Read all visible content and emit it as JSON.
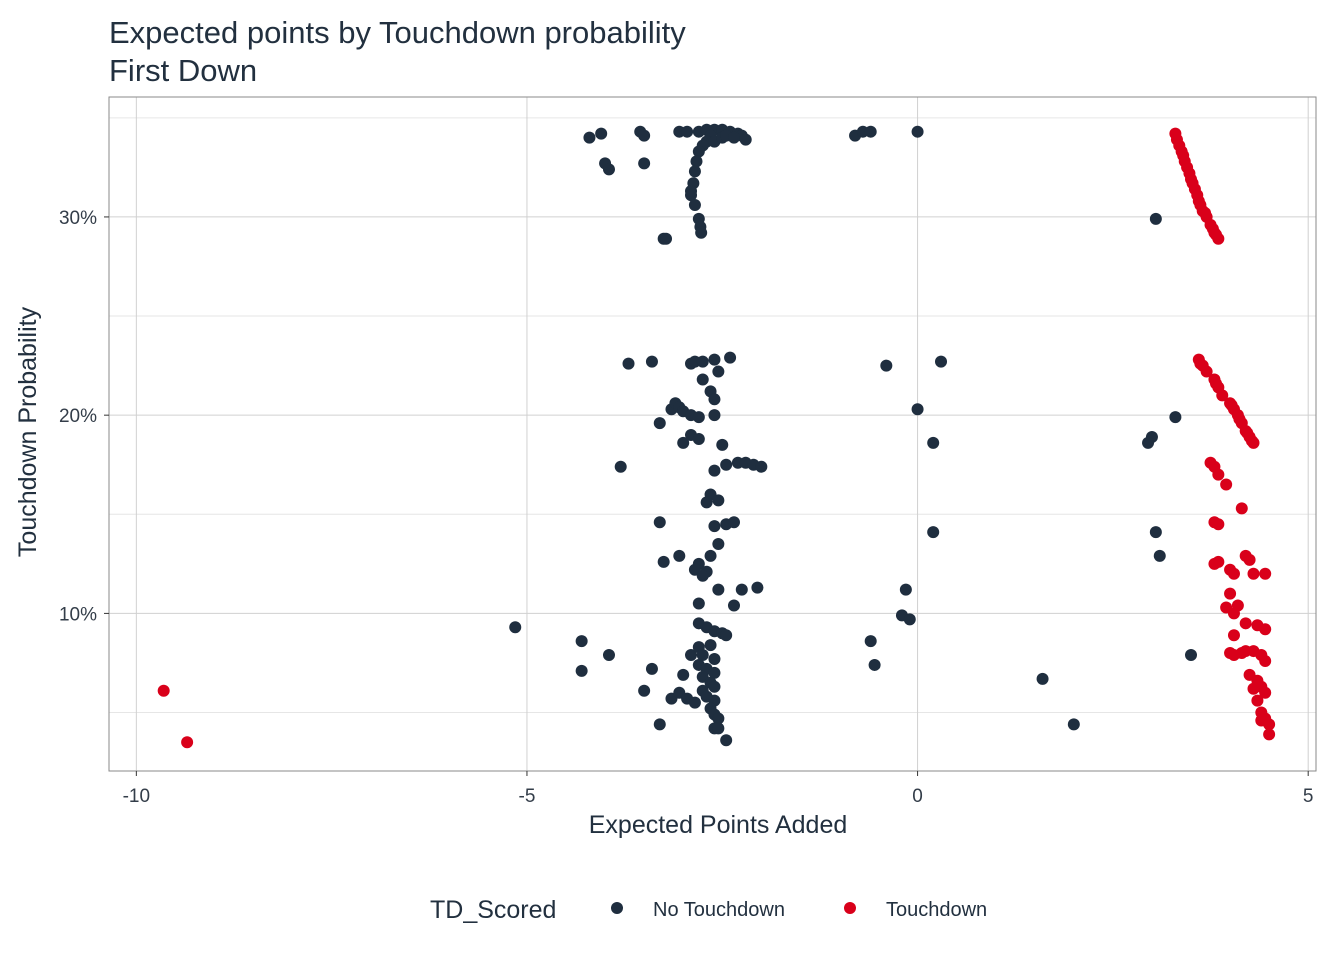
{
  "colors": {
    "no_touchdown": "#1f2e3f",
    "touchdown": "#d9001a",
    "grid_major": "#d0d0d0",
    "grid_minor": "#e6e6e6",
    "panel_border": "#8a8a8a"
  },
  "chart_data": {
    "type": "scatter",
    "title": "Expected points by Touchdown probability",
    "subtitle": "First Down",
    "xlabel": "Expected Points Added",
    "ylabel": "Touchdown Probability",
    "xlim": [
      -10.35,
      5.1
    ],
    "ylim": [
      0.0205,
      0.3605
    ],
    "x_ticks": [
      -10,
      -5,
      0,
      5
    ],
    "x_tick_labels": [
      "-10",
      "-5",
      "0",
      "5"
    ],
    "y_ticks": [
      0.1,
      0.2,
      0.3
    ],
    "y_tick_labels": [
      "10%",
      "20%",
      "30%"
    ],
    "y_minor_ticks": [
      0.05,
      0.15,
      0.25,
      0.35
    ],
    "grid": true,
    "legend": {
      "title": "TD_Scored",
      "position": "bottom",
      "entries": [
        "No Touchdown",
        "Touchdown"
      ]
    },
    "series": [
      {
        "name": "No Touchdown",
        "points": [
          [
            -4.2,
            0.34
          ],
          [
            -4.05,
            0.342
          ],
          [
            -3.55,
            0.343
          ],
          [
            -3.5,
            0.341
          ],
          [
            -4.0,
            0.327
          ],
          [
            -3.95,
            0.324
          ],
          [
            -3.5,
            0.327
          ],
          [
            -3.25,
            0.289
          ],
          [
            -3.22,
            0.289
          ],
          [
            -3.05,
            0.343
          ],
          [
            -2.95,
            0.343
          ],
          [
            -2.8,
            0.343
          ],
          [
            -2.7,
            0.344
          ],
          [
            -2.6,
            0.344
          ],
          [
            -2.5,
            0.344
          ],
          [
            -2.4,
            0.343
          ],
          [
            -2.3,
            0.342
          ],
          [
            -2.25,
            0.341
          ],
          [
            -2.2,
            0.339
          ],
          [
            -2.65,
            0.341
          ],
          [
            -2.7,
            0.338
          ],
          [
            -2.75,
            0.336
          ],
          [
            -2.8,
            0.333
          ],
          [
            -2.83,
            0.328
          ],
          [
            -2.85,
            0.323
          ],
          [
            -2.87,
            0.317
          ],
          [
            -2.9,
            0.313
          ],
          [
            -2.9,
            0.311
          ],
          [
            -2.85,
            0.306
          ],
          [
            -2.8,
            0.299
          ],
          [
            -2.78,
            0.295
          ],
          [
            -2.77,
            0.292
          ],
          [
            -2.6,
            0.338
          ],
          [
            -2.5,
            0.34
          ],
          [
            -2.45,
            0.341
          ],
          [
            -2.35,
            0.34
          ],
          [
            -0.8,
            0.341
          ],
          [
            -0.7,
            0.343
          ],
          [
            -0.6,
            0.343
          ],
          [
            0.0,
            0.343
          ],
          [
            3.05,
            0.299
          ],
          [
            -3.7,
            0.226
          ],
          [
            -3.4,
            0.227
          ],
          [
            -2.9,
            0.226
          ],
          [
            -2.85,
            0.227
          ],
          [
            -2.75,
            0.227
          ],
          [
            -2.6,
            0.228
          ],
          [
            -2.4,
            0.229
          ],
          [
            -2.55,
            0.222
          ],
          [
            -2.75,
            0.218
          ],
          [
            -2.65,
            0.212
          ],
          [
            -2.6,
            0.208
          ],
          [
            -0.4,
            0.225
          ],
          [
            0.3,
            0.227
          ],
          [
            -3.15,
            0.203
          ],
          [
            -3.1,
            0.206
          ],
          [
            -3.05,
            0.204
          ],
          [
            -3.0,
            0.202
          ],
          [
            -2.9,
            0.2
          ],
          [
            -2.8,
            0.199
          ],
          [
            -2.6,
            0.2
          ],
          [
            -3.3,
            0.196
          ],
          [
            -2.9,
            0.19
          ],
          [
            -2.8,
            0.188
          ],
          [
            -3.0,
            0.186
          ],
          [
            -2.5,
            0.185
          ],
          [
            -0.0,
            0.203
          ],
          [
            0.2,
            0.186
          ],
          [
            -3.8,
            0.174
          ],
          [
            -2.6,
            0.172
          ],
          [
            -2.45,
            0.175
          ],
          [
            -2.3,
            0.176
          ],
          [
            -2.2,
            0.176
          ],
          [
            -2.1,
            0.175
          ],
          [
            -2.0,
            0.174
          ],
          [
            -2.65,
            0.16
          ],
          [
            -2.55,
            0.157
          ],
          [
            -2.7,
            0.156
          ],
          [
            -3.3,
            0.146
          ],
          [
            -2.6,
            0.144
          ],
          [
            -2.45,
            0.145
          ],
          [
            -2.35,
            0.146
          ],
          [
            -2.55,
            0.135
          ],
          [
            -2.65,
            0.129
          ],
          [
            -3.25,
            0.126
          ],
          [
            -2.8,
            0.125
          ],
          [
            -2.7,
            0.121
          ],
          [
            -3.05,
            0.129
          ],
          [
            -2.85,
            0.122
          ],
          [
            -2.75,
            0.119
          ],
          [
            -2.55,
            0.112
          ],
          [
            -2.25,
            0.112
          ],
          [
            -2.05,
            0.113
          ],
          [
            -2.35,
            0.104
          ],
          [
            -2.8,
            0.105
          ],
          [
            0.2,
            0.141
          ],
          [
            -0.15,
            0.112
          ],
          [
            -0.2,
            0.099
          ],
          [
            -0.1,
            0.097
          ],
          [
            -5.15,
            0.093
          ],
          [
            -4.3,
            0.086
          ],
          [
            -3.95,
            0.079
          ],
          [
            -4.3,
            0.071
          ],
          [
            -3.4,
            0.072
          ],
          [
            -3.5,
            0.061
          ],
          [
            -3.3,
            0.044
          ],
          [
            -3.15,
            0.057
          ],
          [
            -3.05,
            0.06
          ],
          [
            -2.95,
            0.057
          ],
          [
            -2.85,
            0.055
          ],
          [
            -3.0,
            0.069
          ],
          [
            -2.9,
            0.079
          ],
          [
            -2.8,
            0.095
          ],
          [
            -2.7,
            0.093
          ],
          [
            -2.6,
            0.091
          ],
          [
            -2.5,
            0.09
          ],
          [
            -2.45,
            0.089
          ],
          [
            -2.65,
            0.084
          ],
          [
            -2.8,
            0.083
          ],
          [
            -2.75,
            0.079
          ],
          [
            -2.6,
            0.077
          ],
          [
            -2.8,
            0.074
          ],
          [
            -2.7,
            0.072
          ],
          [
            -2.6,
            0.07
          ],
          [
            -2.75,
            0.068
          ],
          [
            -2.65,
            0.065
          ],
          [
            -2.6,
            0.063
          ],
          [
            -2.75,
            0.061
          ],
          [
            -2.7,
            0.058
          ],
          [
            -2.6,
            0.056
          ],
          [
            -2.65,
            0.052
          ],
          [
            -2.6,
            0.049
          ],
          [
            -2.55,
            0.047
          ],
          [
            -2.6,
            0.042
          ],
          [
            -2.55,
            0.042
          ],
          [
            -2.45,
            0.036
          ],
          [
            -0.6,
            0.086
          ],
          [
            -0.55,
            0.074
          ],
          [
            1.6,
            0.067
          ],
          [
            2.0,
            0.044
          ],
          [
            3.0,
            0.189
          ],
          [
            2.95,
            0.186
          ],
          [
            3.3,
            0.199
          ],
          [
            3.05,
            0.141
          ],
          [
            3.1,
            0.129
          ],
          [
            3.5,
            0.079
          ]
        ]
      },
      {
        "name": "Touchdown",
        "points": [
          [
            3.3,
            0.342
          ],
          [
            3.35,
            0.336
          ],
          [
            3.4,
            0.331
          ],
          [
            3.45,
            0.325
          ],
          [
            3.5,
            0.319
          ],
          [
            3.55,
            0.314
          ],
          [
            3.6,
            0.308
          ],
          [
            3.65,
            0.303
          ],
          [
            3.7,
            0.3
          ],
          [
            3.75,
            0.296
          ],
          [
            3.8,
            0.292
          ],
          [
            3.85,
            0.289
          ],
          [
            3.32,
            0.339
          ],
          [
            3.38,
            0.333
          ],
          [
            3.42,
            0.328
          ],
          [
            3.48,
            0.322
          ],
          [
            3.52,
            0.317
          ],
          [
            3.58,
            0.311
          ],
          [
            3.62,
            0.306
          ],
          [
            3.68,
            0.302
          ],
          [
            3.78,
            0.294
          ],
          [
            3.82,
            0.291
          ],
          [
            3.6,
            0.228
          ],
          [
            3.65,
            0.225
          ],
          [
            3.7,
            0.222
          ],
          [
            3.8,
            0.218
          ],
          [
            3.85,
            0.214
          ],
          [
            3.9,
            0.21
          ],
          [
            4.0,
            0.206
          ],
          [
            4.05,
            0.203
          ],
          [
            4.1,
            0.2
          ],
          [
            4.15,
            0.196
          ],
          [
            4.2,
            0.192
          ],
          [
            4.25,
            0.189
          ],
          [
            4.3,
            0.186
          ],
          [
            3.62,
            0.226
          ],
          [
            3.82,
            0.216
          ],
          [
            4.02,
            0.205
          ],
          [
            4.12,
            0.198
          ],
          [
            4.22,
            0.191
          ],
          [
            4.28,
            0.187
          ],
          [
            3.75,
            0.176
          ],
          [
            3.8,
            0.174
          ],
          [
            3.85,
            0.17
          ],
          [
            3.95,
            0.165
          ],
          [
            4.15,
            0.153
          ],
          [
            3.8,
            0.146
          ],
          [
            3.85,
            0.145
          ],
          [
            3.85,
            0.126
          ],
          [
            3.8,
            0.125
          ],
          [
            4.0,
            0.122
          ],
          [
            4.05,
            0.12
          ],
          [
            4.2,
            0.129
          ],
          [
            4.25,
            0.127
          ],
          [
            4.3,
            0.12
          ],
          [
            4.45,
            0.12
          ],
          [
            3.95,
            0.103
          ],
          [
            4.0,
            0.11
          ],
          [
            4.1,
            0.104
          ],
          [
            4.05,
            0.1
          ],
          [
            4.2,
            0.095
          ],
          [
            4.35,
            0.094
          ],
          [
            4.45,
            0.092
          ],
          [
            4.05,
            0.089
          ],
          [
            4.0,
            0.08
          ],
          [
            4.05,
            0.079
          ],
          [
            4.15,
            0.08
          ],
          [
            4.2,
            0.081
          ],
          [
            4.3,
            0.081
          ],
          [
            4.4,
            0.079
          ],
          [
            4.45,
            0.076
          ],
          [
            4.25,
            0.069
          ],
          [
            4.35,
            0.066
          ],
          [
            4.4,
            0.063
          ],
          [
            4.3,
            0.062
          ],
          [
            4.45,
            0.06
          ],
          [
            4.35,
            0.056
          ],
          [
            4.4,
            0.05
          ],
          [
            4.45,
            0.047
          ],
          [
            4.5,
            0.044
          ],
          [
            4.4,
            0.046
          ],
          [
            4.5,
            0.039
          ],
          [
            -9.65,
            0.061
          ],
          [
            -9.35,
            0.035
          ]
        ]
      }
    ]
  }
}
